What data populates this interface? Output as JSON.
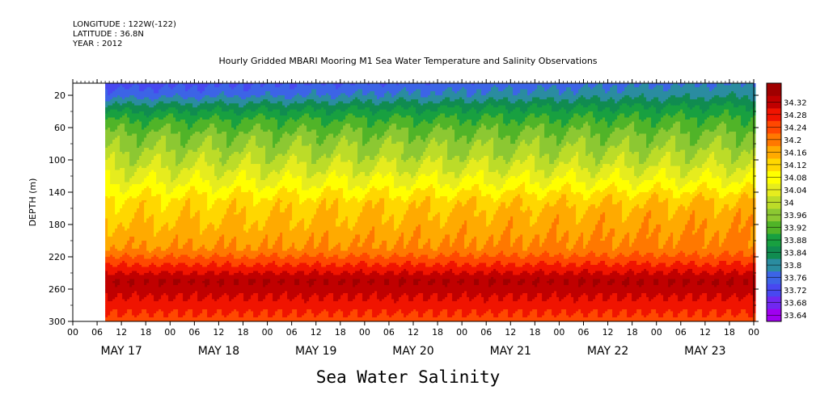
{
  "header": {
    "longitude": "LONGITUDE : 122W(-122)",
    "latitude": "LATITUDE : 36.8N",
    "year": "YEAR : 2012",
    "title": "Hourly Gridded MBARI Mooring M1 Sea Water Temperature and Salinity Observations"
  },
  "chart_data": {
    "type": "heatmap",
    "title": "Sea Water Salinity",
    "ylabel": "DEPTH (m)",
    "xlabel": "",
    "y_ticks": [
      20,
      60,
      100,
      140,
      180,
      220,
      260,
      300
    ],
    "ylim": [
      300,
      5
    ],
    "x_hour_labels": [
      "00",
      "06",
      "12",
      "18",
      "00",
      "06",
      "12",
      "18",
      "00",
      "06",
      "12",
      "18",
      "00",
      "06",
      "12",
      "18",
      "00",
      "06",
      "12",
      "18",
      "00",
      "06",
      "12",
      "18",
      "00",
      "06",
      "12",
      "18",
      "00"
    ],
    "x_day_labels": [
      "MAY 17",
      "MAY 18",
      "MAY 19",
      "MAY 20",
      "MAY 21",
      "MAY 22",
      "MAY 23"
    ],
    "xlim_hours": [
      0,
      168
    ],
    "data_start_hour": 8,
    "colorbar_levels": [
      "33.64",
      "33.68",
      "33.72",
      "33.76",
      "33.8",
      "33.84",
      "33.88",
      "33.92",
      "33.96",
      "34",
      "34.04",
      "34.08",
      "34.12",
      "34.16",
      "34.2",
      "34.24",
      "34.28",
      "34.32"
    ],
    "colorbar_colors": [
      "#a000f0",
      "#7028f0",
      "#4848f0",
      "#3c64e6",
      "#2a8ca0",
      "#108c50",
      "#18a040",
      "#50b428",
      "#8cc832",
      "#bcdc28",
      "#e6ec1e",
      "#ffff00",
      "#ffd700",
      "#ffaa00",
      "#ff7800",
      "#ff4800",
      "#f01400",
      "#c00000",
      "#a00000"
    ],
    "profile": [
      {
        "depth": 5,
        "value": 33.7
      },
      {
        "depth": 20,
        "value": 33.74
      },
      {
        "depth": 35,
        "value": 33.82
      },
      {
        "depth": 50,
        "value": 33.88
      },
      {
        "depth": 70,
        "value": 33.93
      },
      {
        "depth": 100,
        "value": 33.98
      },
      {
        "depth": 130,
        "value": 34.04
      },
      {
        "depth": 150,
        "value": 34.09
      },
      {
        "depth": 180,
        "value": 34.12
      },
      {
        "depth": 210,
        "value": 34.16
      },
      {
        "depth": 230,
        "value": 34.24
      },
      {
        "depth": 250,
        "value": 34.32
      },
      {
        "depth": 270,
        "value": 34.28
      },
      {
        "depth": 300,
        "value": 34.22
      }
    ]
  }
}
